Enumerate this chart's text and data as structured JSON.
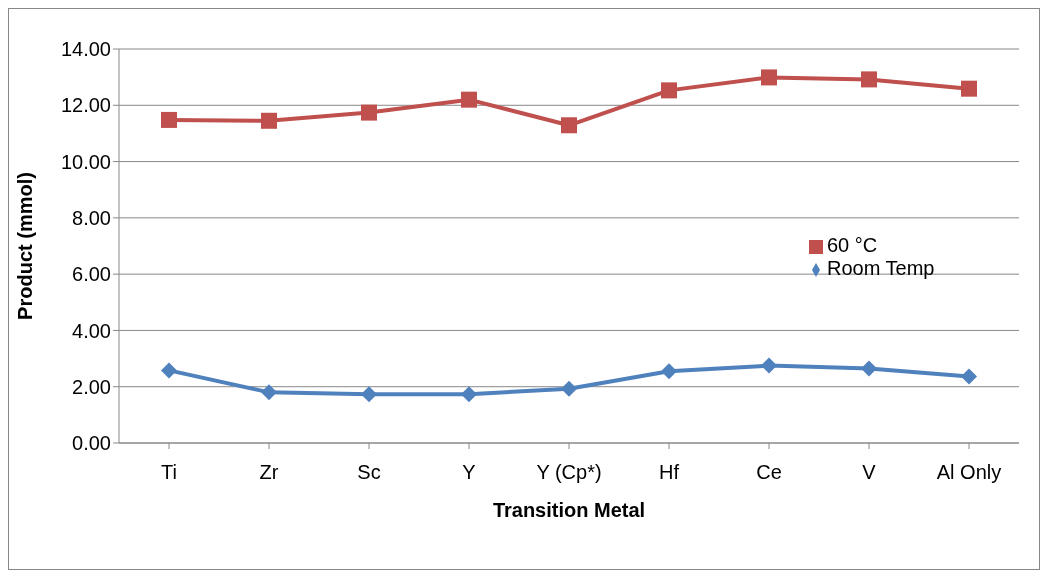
{
  "chart_data": {
    "type": "line",
    "xlabel": "Transition Metal",
    "ylabel": "Product (mmol)",
    "categories": [
      "Ti",
      "Zr",
      "Sc",
      "Y",
      "Y (Cp*)",
      "Hf",
      "Ce",
      "V",
      "Al Only"
    ],
    "series": [
      {
        "name": "60 °C",
        "color": "#c0504d",
        "marker": "square",
        "values": [
          11.48,
          11.45,
          11.74,
          12.2,
          11.29,
          12.53,
          12.99,
          12.92,
          12.59
        ]
      },
      {
        "name": "Room Temp",
        "color": "#4f81bd",
        "marker": "diamond",
        "values": [
          2.58,
          1.8,
          1.73,
          1.73,
          1.93,
          2.55,
          2.75,
          2.65,
          2.36
        ]
      }
    ],
    "ylim": [
      0,
      14
    ],
    "yticks": [
      {
        "value": 0,
        "label": "0.00"
      },
      {
        "value": 2,
        "label": "2.00"
      },
      {
        "value": 4,
        "label": "4.00"
      },
      {
        "value": 6,
        "label": "6.00"
      },
      {
        "value": 8,
        "label": "8.00"
      },
      {
        "value": 10,
        "label": "10.00"
      },
      {
        "value": 12,
        "label": "12.00"
      },
      {
        "value": 14,
        "label": "14.00"
      }
    ],
    "grid": "y",
    "legend": "right",
    "line_style": "solid"
  }
}
